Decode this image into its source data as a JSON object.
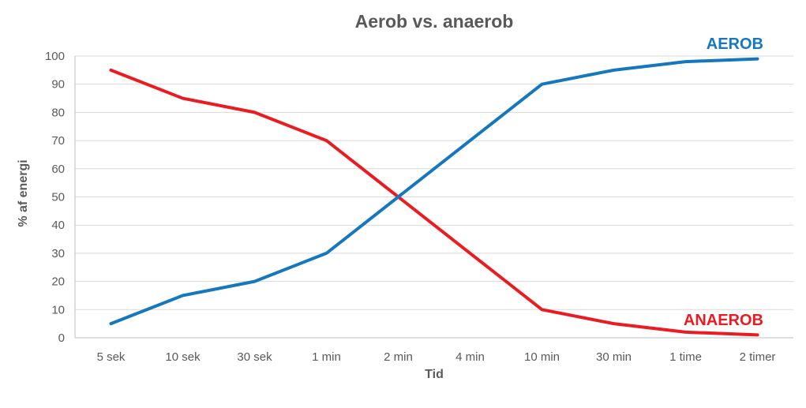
{
  "chart_data": {
    "type": "line",
    "title": "Aerob vs. anaerob",
    "xlabel": "Tid",
    "ylabel": "% af energi",
    "categories": [
      "5 sek",
      "10 sek",
      "30 sek",
      "1 min",
      "2 min",
      "4 min",
      "10 min",
      "30 min",
      "1 time",
      "2 timer"
    ],
    "series": [
      {
        "name": "AEROB",
        "color": "#1577BE",
        "values": [
          5,
          15,
          20,
          30,
          50,
          70,
          90,
          95,
          98,
          99
        ]
      },
      {
        "name": "ANAEROB",
        "color": "#EA1C21",
        "values": [
          95,
          85,
          80,
          70,
          50,
          30,
          10,
          5,
          2,
          1
        ]
      }
    ],
    "ylim": [
      0,
      100
    ],
    "y_ticks": [
      0,
      10,
      20,
      30,
      40,
      50,
      60,
      70,
      80,
      90,
      100
    ],
    "grid": "horizontal",
    "legend_position": "series-end-labels",
    "colors": {
      "text": "#595959",
      "gridline": "#D9D9D9",
      "axis": "#BFBFBF",
      "background": "#FFFFFF"
    }
  }
}
